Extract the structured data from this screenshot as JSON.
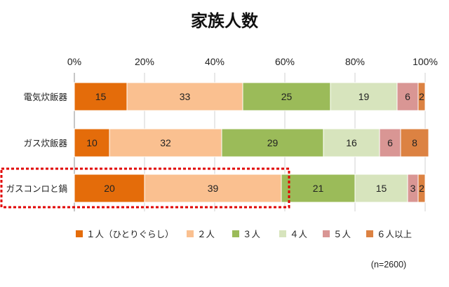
{
  "chart_data": {
    "type": "bar",
    "orientation": "horizontal-stacked-100",
    "title": "家族人数",
    "note": "(n=2600)",
    "x_ticks": [
      "0%",
      "20%",
      "40%",
      "60%",
      "80%",
      "100%"
    ],
    "xlim": [
      0,
      100
    ],
    "grid": true,
    "legend_position": "bottom",
    "highlight": "ガスコンロと鍋",
    "categories": [
      "電気炊飯器",
      "ガス炊飯器",
      "ガスコンロと鍋"
    ],
    "series": [
      {
        "name": "１人（ひとりぐらし）",
        "color": "#e46c0a",
        "values": [
          15,
          10,
          20
        ]
      },
      {
        "name": "２人",
        "color": "#fac090",
        "values": [
          33,
          32,
          39
        ]
      },
      {
        "name": "３人",
        "color": "#9bbb59",
        "values": [
          25,
          29,
          21
        ]
      },
      {
        "name": "４人",
        "color": "#d7e4bd",
        "values": [
          19,
          16,
          15
        ]
      },
      {
        "name": "５人",
        "color": "#d99694",
        "values": [
          6,
          6,
          3
        ]
      },
      {
        "name": "６人以上",
        "color": "#dc8242",
        "values": [
          2,
          8,
          2
        ]
      }
    ]
  }
}
